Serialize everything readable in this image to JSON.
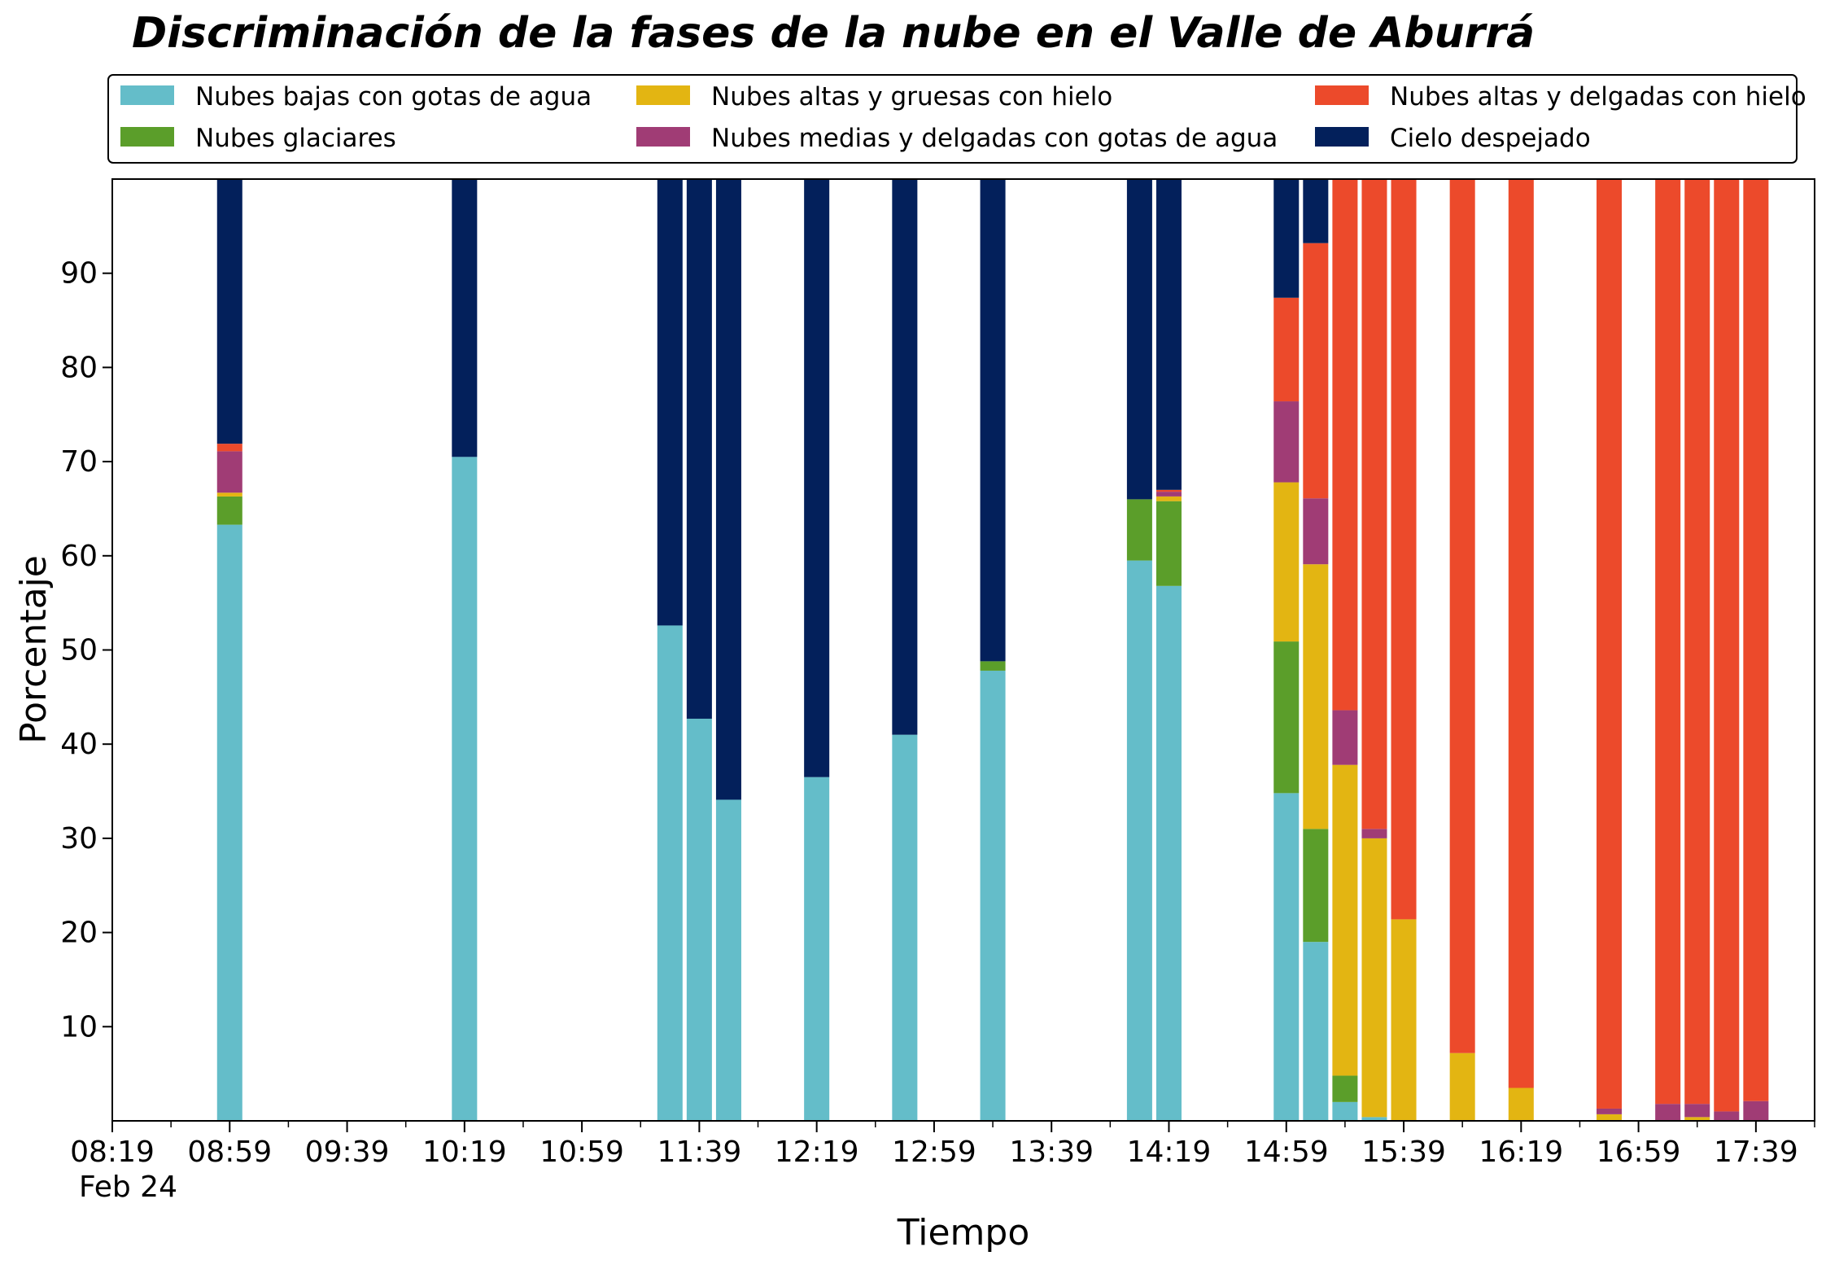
{
  "chart_data": {
    "type": "bar",
    "stacked": true,
    "title": "Discriminación de la fases de la nube en el Valle de Aburrá",
    "xlabel": "Tiempo",
    "ylabel": "Porcentaje",
    "date_label": "Feb 24",
    "x_tick_labels": [
      "08:19",
      "08:59",
      "09:39",
      "10:19",
      "10:59",
      "11:39",
      "12:19",
      "12:59",
      "13:39",
      "14:19",
      "14:59",
      "15:39",
      "16:19",
      "16:59",
      "17:39"
    ],
    "y_ticks": [
      10,
      20,
      30,
      40,
      50,
      60,
      70,
      80,
      90
    ],
    "ylim": [
      0,
      100
    ],
    "xlim": [
      "08:19",
      "17:59"
    ],
    "grid": false,
    "legend_position": "top, above plot, 3 columns",
    "times": [
      "08:59",
      "10:19",
      "11:29",
      "11:39",
      "11:49",
      "12:19",
      "12:49",
      "13:19",
      "14:09",
      "14:19",
      "14:59",
      "15:09",
      "15:19",
      "15:29",
      "15:39",
      "15:59",
      "16:19",
      "16:49",
      "17:09",
      "17:19",
      "17:29",
      "17:39"
    ],
    "series": [
      {
        "name": "Nubes bajas con gotas de agua",
        "color": "#64bdc9",
        "values": [
          63.3,
          70.5,
          52.6,
          42.7,
          34.1,
          36.5,
          41.0,
          47.8,
          59.5,
          56.8,
          34.8,
          19.0,
          2.0,
          0.4,
          0,
          0,
          0,
          0,
          0,
          0,
          0,
          0
        ]
      },
      {
        "name": "Nubes glaciares",
        "color": "#5b9e2a",
        "values": [
          3.0,
          0,
          0,
          0,
          0,
          0,
          0,
          1.0,
          6.5,
          9.0,
          16.1,
          12.0,
          2.8,
          0,
          0,
          0,
          0,
          0,
          0,
          0,
          0,
          0
        ]
      },
      {
        "name": "Nubes altas y gruesas con hielo",
        "color": "#e3b512",
        "values": [
          0.4,
          0,
          0,
          0,
          0,
          0,
          0,
          0,
          0,
          0.5,
          16.9,
          28.1,
          33.0,
          29.6,
          21.4,
          7.2,
          3.5,
          0.7,
          0,
          0.4,
          0,
          0
        ]
      },
      {
        "name": "Nubes medias y delgadas con gotas de agua",
        "color": "#a03c75",
        "values": [
          4.4,
          0,
          0,
          0,
          0,
          0,
          0,
          0,
          0,
          0.5,
          8.6,
          7.0,
          5.8,
          1.0,
          0,
          0,
          0,
          0.6,
          1.8,
          1.4,
          1.0,
          2.1
        ]
      },
      {
        "name": "Nubes altas y delgadas con hielo",
        "color": "#ec4a2b",
        "values": [
          0.8,
          0,
          0,
          0,
          0,
          0,
          0,
          0,
          0,
          0.2,
          11.0,
          27.1,
          56.4,
          69.0,
          78.6,
          92.8,
          96.5,
          98.7,
          98.2,
          98.2,
          99.0,
          97.9
        ]
      },
      {
        "name": "Cielo despejado",
        "color": "#03205b",
        "values": [
          28.1,
          29.5,
          47.4,
          57.3,
          65.9,
          63.5,
          59.0,
          51.2,
          34.0,
          33.0,
          12.6,
          6.8,
          0,
          0,
          0,
          0,
          0,
          0,
          0,
          0,
          0,
          0
        ]
      }
    ]
  }
}
